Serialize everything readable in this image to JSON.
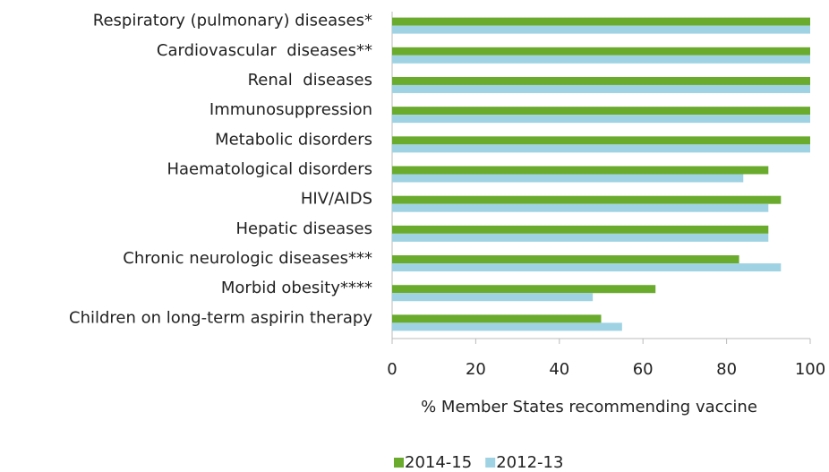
{
  "chart_data": {
    "type": "bar",
    "orientation": "horizontal",
    "categories": [
      "Respiratory (pulmonary) diseases*",
      "Cardiovascular  diseases**",
      "Renal  diseases",
      "Immunosuppression",
      "Metabolic disorders",
      "Haematological disorders",
      "HIV/AIDS",
      "Hepatic diseases",
      "Chronic neurologic diseases***",
      "Morbid obesity****",
      "Children on long-term aspirin therapy"
    ],
    "series": [
      {
        "name": "2014-15",
        "color": "#6aab2e",
        "values": [
          100,
          100,
          100,
          100,
          100,
          90,
          93,
          90,
          83,
          63,
          50
        ]
      },
      {
        "name": "2012-13",
        "color": "#9fd3e3",
        "values": [
          100,
          100,
          100,
          100,
          100,
          84,
          90,
          90,
          93,
          48,
          55
        ]
      }
    ],
    "xlabel": "% Member States recommending vaccine",
    "xlim": [
      0,
      100
    ],
    "xticks": [
      0,
      20,
      40,
      60,
      80,
      100
    ],
    "legend": "bottom"
  }
}
